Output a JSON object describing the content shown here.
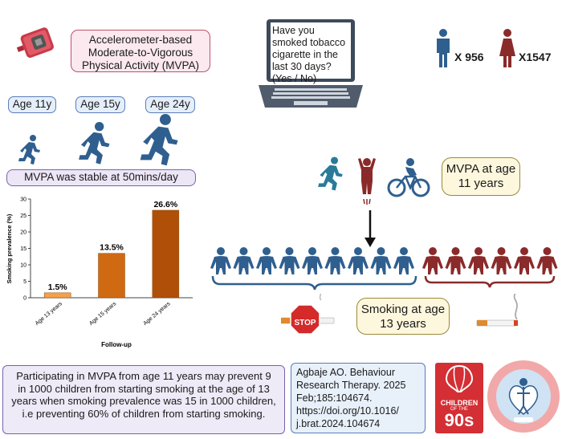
{
  "accelerometer": {
    "label": "Accelerometer-based Moderate-to-Vigorous Physical Activity (MVPA)"
  },
  "survey": {
    "question": "Have you smoked tobacco cigarette in the last 30 days? (Yes / No)"
  },
  "counts": {
    "male": "X 956",
    "female": "X1547"
  },
  "ages": [
    "Age 11y",
    "Age 15y",
    "Age 24y"
  ],
  "mvpa_stable": "MVPA was stable at 50mins/day",
  "mvpa_age": "MVPA at age 11 years",
  "smoking_age": "Smoking at age 13 years",
  "stop_sign": "STOP",
  "summary": "Participating in MVPA from age 11 years may prevent 9 in 1000 children from starting smoking at the age of 13 years when smoking prevalence was 15 in 1000 children, i.e preventing 60% of children from starting smoking.",
  "citation": "Agbaje AO. Behaviour Research Therapy. 2025 Feb;185:104674. https://doi.org/10.1016/ j.brat.2024.104674",
  "logo": {
    "line1": "CHILDREN",
    "line2": "OF THE",
    "line3": "90s"
  },
  "colors": {
    "blue": "#2f5f8f",
    "red": "#8b2a2a",
    "orange": "#c95f0c",
    "light_orange": "#f4a14a"
  },
  "chart_data": {
    "type": "bar",
    "categories": [
      "Age 13 years",
      "Age 15 years",
      "Age 24 years"
    ],
    "values": [
      1.5,
      13.5,
      26.6
    ],
    "labels": [
      "1.5%",
      "13.5%",
      "26.6%"
    ],
    "ylabel": "Smoking prevalence (%)",
    "xlabel": "Follow-up",
    "ylim": [
      0,
      30
    ],
    "yticks": [
      0,
      5,
      10,
      15,
      20,
      25,
      30
    ],
    "colors": [
      "#f4a14a",
      "#cf6a12",
      "#b04f07"
    ]
  }
}
